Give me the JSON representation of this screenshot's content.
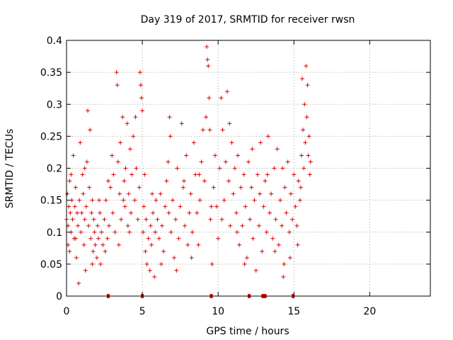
{
  "chart_data": {
    "type": "scatter",
    "title": "Day 319 of 2017, SRMTID for receiver rwsn",
    "xlabel": "GPS time / hours",
    "ylabel": "SRMTID / TECUs",
    "xlim": [
      0,
      24
    ],
    "ylim": [
      0,
      0.4
    ],
    "x_ticks": [
      0,
      5,
      10,
      15,
      20
    ],
    "x_tick_labels": [
      "0",
      "5",
      "10",
      "15",
      "20"
    ],
    "y_ticks": [
      0,
      0.05,
      0.1,
      0.15,
      0.2,
      0.25,
      0.3,
      0.35,
      0.4
    ],
    "y_tick_labels": [
      "0",
      "0.05",
      "0.1",
      "0.15",
      "0.2",
      "0.25",
      "0.3",
      "0.35",
      "0.4"
    ],
    "grid": true,
    "marker": "+",
    "color": "#dd0000",
    "series": [
      {
        "name": "SRMTID",
        "points": [
          [
            0.0,
            0.12
          ],
          [
            0.05,
            0.16
          ],
          [
            0.1,
            0.08
          ],
          [
            0.1,
            0.11
          ],
          [
            0.15,
            0.14
          ],
          [
            0.2,
            0.07
          ],
          [
            0.2,
            0.18
          ],
          [
            0.25,
            0.13
          ],
          [
            0.3,
            0.1
          ],
          [
            0.35,
            0.15
          ],
          [
            0.4,
            0.12
          ],
          [
            0.45,
            0.22
          ],
          [
            0.5,
            0.09
          ],
          [
            0.55,
            0.14
          ],
          [
            0.6,
            0.17
          ],
          [
            0.65,
            0.06
          ],
          [
            0.7,
            0.13
          ],
          [
            0.75,
            0.11
          ],
          [
            0.8,
            0.02
          ],
          [
            0.85,
            0.15
          ],
          [
            0.9,
            0.24
          ],
          [
            0.95,
            0.1
          ],
          [
            1.0,
            0.13
          ],
          [
            1.05,
            0.19
          ],
          [
            1.1,
            0.16
          ],
          [
            1.15,
            0.08
          ],
          [
            1.2,
            0.12
          ],
          [
            1.25,
            0.04
          ],
          [
            1.3,
            0.14
          ],
          [
            1.35,
            0.21
          ],
          [
            1.4,
            0.29
          ],
          [
            1.45,
            0.11
          ],
          [
            1.5,
            0.17
          ],
          [
            1.55,
            0.26
          ],
          [
            1.6,
            0.09
          ],
          [
            1.65,
            0.13
          ],
          [
            1.7,
            0.15
          ],
          [
            1.75,
            0.07
          ],
          [
            1.8,
            0.12
          ],
          [
            1.85,
            0.1
          ],
          [
            1.9,
            0.08
          ],
          [
            2.0,
            0.06
          ],
          [
            2.05,
            0.11
          ],
          [
            2.1,
            0.09
          ],
          [
            2.2,
            0.13
          ],
          [
            2.25,
            0.05
          ],
          [
            2.3,
            0.1
          ],
          [
            2.4,
            0.08
          ],
          [
            2.5,
            0.12
          ],
          [
            2.55,
            0.07
          ],
          [
            2.6,
            0.15
          ],
          [
            2.7,
            0.09
          ],
          [
            2.8,
            0.11
          ],
          [
            2.9,
            0.17
          ],
          [
            3.0,
            0.22
          ],
          [
            3.05,
            0.13
          ],
          [
            3.1,
            0.19
          ],
          [
            3.2,
            0.1
          ],
          [
            3.3,
            0.35
          ],
          [
            3.35,
            0.33
          ],
          [
            3.4,
            0.21
          ],
          [
            3.5,
            0.16
          ],
          [
            3.55,
            0.24
          ],
          [
            3.6,
            0.12
          ],
          [
            3.7,
            0.28
          ],
          [
            3.8,
            0.18
          ],
          [
            3.85,
            0.14
          ],
          [
            3.9,
            0.2
          ],
          [
            4.0,
            0.27
          ],
          [
            4.05,
            0.11
          ],
          [
            4.1,
            0.16
          ],
          [
            4.2,
            0.23
          ],
          [
            4.25,
            0.13
          ],
          [
            4.3,
            0.19
          ],
          [
            4.4,
            0.25
          ],
          [
            4.5,
            0.15
          ],
          [
            4.55,
            0.28
          ],
          [
            4.6,
            0.2
          ],
          [
            4.7,
            0.12
          ],
          [
            4.8,
            0.17
          ],
          [
            4.85,
            0.35
          ],
          [
            4.9,
            0.33
          ],
          [
            4.95,
            0.31
          ],
          [
            5.0,
            0.29
          ],
          [
            5.05,
            0.1
          ],
          [
            5.1,
            0.14
          ],
          [
            5.2,
            0.07
          ],
          [
            5.25,
            0.12
          ],
          [
            5.3,
            0.05
          ],
          [
            5.4,
            0.09
          ],
          [
            5.5,
            0.04
          ],
          [
            5.55,
            0.11
          ],
          [
            5.6,
            0.08
          ],
          [
            5.7,
            0.13
          ],
          [
            5.8,
            0.03
          ],
          [
            5.85,
            0.1
          ],
          [
            5.9,
            0.15
          ],
          [
            6.0,
            0.12
          ],
          [
            6.1,
            0.09
          ],
          [
            6.2,
            0.16
          ],
          [
            6.3,
            0.11
          ],
          [
            6.4,
            0.07
          ],
          [
            6.5,
            0.14
          ],
          [
            6.6,
            0.18
          ],
          [
            6.7,
            0.21
          ],
          [
            6.8,
            0.28
          ],
          [
            6.85,
            0.25
          ],
          [
            6.9,
            0.1
          ],
          [
            7.0,
            0.15
          ],
          [
            7.1,
            0.06
          ],
          [
            7.2,
            0.12
          ],
          [
            7.3,
            0.2
          ],
          [
            7.4,
            0.09
          ],
          [
            7.5,
            0.14
          ],
          [
            7.6,
            0.27
          ],
          [
            7.7,
            0.17
          ],
          [
            7.8,
            0.11
          ],
          [
            7.9,
            0.22
          ],
          [
            8.0,
            0.08
          ],
          [
            8.1,
            0.13
          ],
          [
            8.2,
            0.16
          ],
          [
            8.3,
            0.1
          ],
          [
            8.4,
            0.24
          ],
          [
            8.5,
            0.19
          ],
          [
            8.6,
            0.13
          ],
          [
            8.7,
            0.08
          ],
          [
            8.8,
            0.15
          ],
          [
            8.9,
            0.21
          ],
          [
            9.0,
            0.26
          ],
          [
            9.1,
            0.18
          ],
          [
            9.2,
            0.28
          ],
          [
            9.25,
            0.39
          ],
          [
            9.3,
            0.37
          ],
          [
            9.35,
            0.36
          ],
          [
            9.4,
            0.31
          ],
          [
            9.45,
            0.26
          ],
          [
            9.5,
            0.12
          ],
          [
            9.6,
            0.05
          ],
          [
            9.7,
            0.17
          ],
          [
            9.8,
            0.22
          ],
          [
            9.9,
            0.14
          ],
          [
            10.0,
            0.09
          ],
          [
            10.1,
            0.2
          ],
          [
            10.2,
            0.31
          ],
          [
            10.3,
            0.26
          ],
          [
            10.4,
            0.15
          ],
          [
            10.5,
            0.21
          ],
          [
            10.6,
            0.32
          ],
          [
            10.7,
            0.18
          ],
          [
            10.8,
            0.11
          ],
          [
            10.9,
            0.24
          ],
          [
            11.0,
            0.16
          ],
          [
            11.1,
            0.2
          ],
          [
            11.2,
            0.13
          ],
          [
            11.3,
            0.22
          ],
          [
            11.4,
            0.08
          ],
          [
            11.5,
            0.17
          ],
          [
            11.6,
            0.11
          ],
          [
            11.7,
            0.19
          ],
          [
            11.8,
            0.14
          ],
          [
            11.9,
            0.06
          ],
          [
            12.0,
            0.21
          ],
          [
            12.1,
            0.12
          ],
          [
            12.2,
            0.17
          ],
          [
            12.3,
            0.09
          ],
          [
            12.4,
            0.15
          ],
          [
            12.5,
            0.04
          ],
          [
            12.6,
            0.19
          ],
          [
            12.7,
            0.11
          ],
          [
            12.8,
            0.24
          ],
          [
            12.9,
            0.07
          ],
          [
            13.0,
            0.14
          ],
          [
            13.1,
            0.18
          ],
          [
            13.2,
            0.1
          ],
          [
            13.3,
            0.25
          ],
          [
            13.4,
            0.13
          ],
          [
            13.5,
            0.16
          ],
          [
            13.6,
            0.09
          ],
          [
            13.7,
            0.2
          ],
          [
            13.8,
            0.12
          ],
          [
            13.9,
            0.23
          ],
          [
            14.0,
            0.08
          ],
          [
            14.1,
            0.15
          ],
          [
            14.2,
            0.11
          ],
          [
            14.3,
            0.03
          ],
          [
            14.35,
            0.05
          ],
          [
            14.4,
            0.17
          ],
          [
            14.5,
            0.13
          ],
          [
            14.6,
            0.21
          ],
          [
            14.7,
            0.1
          ],
          [
            14.8,
            0.16
          ],
          [
            14.9,
            0.12
          ],
          [
            15.0,
            0.19
          ],
          [
            15.1,
            0.14
          ],
          [
            15.2,
            0.11
          ],
          [
            15.3,
            0.18
          ],
          [
            15.4,
            0.15
          ],
          [
            15.5,
            0.22
          ],
          [
            15.55,
            0.34
          ],
          [
            15.6,
            0.26
          ],
          [
            15.65,
            0.2
          ],
          [
            15.7,
            0.3
          ],
          [
            15.75,
            0.24
          ],
          [
            15.8,
            0.36
          ],
          [
            15.85,
            0.28
          ],
          [
            15.9,
            0.33
          ],
          [
            15.95,
            0.22
          ],
          [
            16.0,
            0.25
          ],
          [
            16.05,
            0.19
          ],
          [
            16.1,
            0.21
          ],
          [
            0.3,
            0.19
          ],
          [
            1.2,
            0.2
          ],
          [
            2.15,
            0.15
          ],
          [
            2.75,
            0.18
          ],
          [
            3.45,
            0.08
          ],
          [
            4.15,
            0.1
          ],
          [
            5.15,
            0.19
          ],
          [
            5.65,
            0.16
          ],
          [
            6.25,
            0.05
          ],
          [
            6.75,
            0.13
          ],
          [
            7.25,
            0.04
          ],
          [
            7.75,
            0.18
          ],
          [
            8.25,
            0.06
          ],
          [
            8.75,
            0.19
          ],
          [
            9.55,
            0.14
          ],
          [
            10.25,
            0.12
          ],
          [
            10.75,
            0.27
          ],
          [
            11.25,
            0.1
          ],
          [
            11.75,
            0.05
          ],
          [
            12.25,
            0.23
          ],
          [
            12.75,
            0.16
          ],
          [
            13.25,
            0.19
          ],
          [
            13.75,
            0.07
          ],
          [
            14.25,
            0.2
          ],
          [
            14.75,
            0.06
          ],
          [
            15.25,
            0.08
          ],
          [
            15.45,
            0.17
          ],
          [
            0.6,
            0.09
          ],
          [
            1.7,
            0.05
          ],
          [
            3.75,
            0.15
          ]
        ]
      }
    ],
    "bottom_markers_x": [
      2.75,
      5.0,
      9.55,
      12.05,
      12.95,
      13.1,
      14.95
    ]
  }
}
